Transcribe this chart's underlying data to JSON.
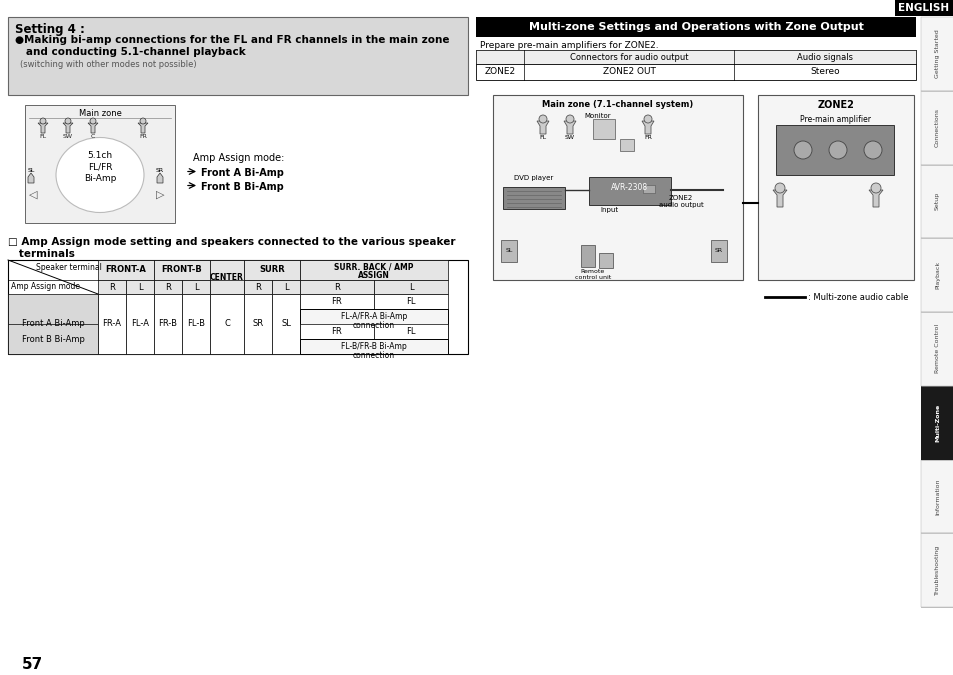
{
  "page_bg": "#ffffff",
  "sidebar_labels": [
    "Getting Started",
    "Connections",
    "Setup",
    "Playback",
    "Remote Control",
    "Multi-Zone",
    "Information",
    "Troubleshooting"
  ],
  "sidebar_active": "Multi-Zone",
  "header_text": "ENGLISH",
  "page_number": "57",
  "setting4_box_bg": "#d8d8d8",
  "setting4_title": "Setting 4 :",
  "setting4_line1": "●Making bi-amp connections for the FL and FR channels in the main zone",
  "setting4_line2": "   and conducting 5.1-channel playback",
  "setting4_note": "(switching with other modes not possible)",
  "main_zone_label": "Main zone",
  "device_label": "5.1ch\nFL/FR\nBi-Amp",
  "amp_assign_mode_label": "Amp Assign mode:",
  "amp_modes": [
    "Front A Bi-Amp",
    "Front B Bi-Amp"
  ],
  "amp_section_title1": "□ Amp Assign mode setting and speakers connected to the various speaker",
  "amp_section_title2": "   terminals",
  "multizone_title": "Multi-zone Settings and Operations with Zone Output",
  "multizone_subtitle": "Prepare pre-main amplifiers for ZONE2.",
  "t1_col0": "ZONE2",
  "t1_col1_hdr": "Connectors for audio output",
  "t1_col1_val": "ZONE2 OUT",
  "t1_col2_hdr": "Audio signals",
  "t1_col2_val": "Stereo",
  "main_zone_sys": "Main zone (7.1-channel system)",
  "zone2_sys": "ZONE2",
  "monitor_lbl": "Monitor",
  "dvd_lbl": "DVD player",
  "avr_lbl": "AVR-2308",
  "input_lbl": "Input",
  "zone2_out_lbl": "ZONE2\naudio output",
  "sl_lbl": "SL",
  "sr_lbl": "SR",
  "fl_lbl": "FL",
  "sw_lbl": "SW",
  "fr_lbl": "FR",
  "remote_lbl": "Remote\ncontrol unit",
  "preamp_lbl": "Pre-main amplifier",
  "cable_lbl": ": Multi-zone audio cable"
}
